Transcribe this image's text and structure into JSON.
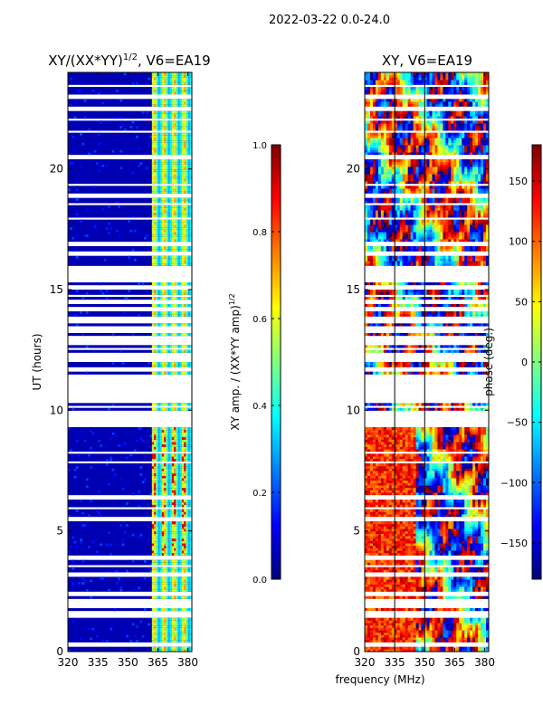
{
  "figure": {
    "suptitle": "2022-03-22 0.0-24.0",
    "shared_xlabel": "frequency (MHz)"
  },
  "colors": {
    "jet": [
      "#00007f",
      "#0000ff",
      "#007fff",
      "#00ffff",
      "#7fff7f",
      "#ffff00",
      "#ff7f00",
      "#ff0000",
      "#7f0000"
    ],
    "axis": "#000000",
    "gap": "#ffffff"
  },
  "chart_data": [
    {
      "type": "heatmap",
      "title_main": "XY/(XX*YY)",
      "title_sup": "1/2",
      "title_tail": ", V6=EA19",
      "xlabel": "",
      "ylabel": "UT (hours)",
      "xlim": [
        320,
        382
      ],
      "ylim": [
        0,
        24
      ],
      "xticks": [
        320,
        335,
        350,
        365,
        380
      ],
      "yticks": [
        0,
        5,
        10,
        15,
        20
      ],
      "colorbar": {
        "label_main": "XY amp. / (XX*YY amp)",
        "label_sup": "1/2",
        "range": [
          0.0,
          1.0
        ],
        "ticks": [
          0.0,
          0.2,
          0.4,
          0.6,
          0.8,
          1.0
        ],
        "tick_labels": [
          "0.0",
          "0.2",
          "0.4",
          "0.6",
          "0.8",
          "1.0"
        ]
      },
      "description_values": {
        "background_amp": 0.05,
        "bright_band_mhz": [
          362,
          382
        ],
        "bright_band_amp_range": [
          0.3,
          0.75
        ],
        "peak_amp": 0.9
      }
    },
    {
      "type": "heatmap",
      "title_main": "XY, V6=EA19",
      "xlabel": "frequency (MHz)",
      "ylabel": "",
      "xlim": [
        320,
        382
      ],
      "ylim": [
        0,
        24
      ],
      "xticks": [
        320,
        335,
        350,
        365,
        380
      ],
      "yticks": [
        0,
        5,
        10,
        15,
        20
      ],
      "colorbar": {
        "label_main": "phase (deg.)",
        "range": [
          -180,
          180
        ],
        "ticks": [
          -150,
          -100,
          -50,
          0,
          50,
          100,
          150
        ],
        "tick_labels": [
          "−150",
          "−100",
          "−50",
          "0",
          "50",
          "100",
          "150"
        ]
      }
    }
  ],
  "data_gaps_hours": [
    [
      0.2,
      0.42
    ],
    [
      1.45,
      1.7
    ],
    [
      1.85,
      2.15
    ],
    [
      2.3,
      2.45
    ],
    [
      3.15,
      3.25
    ],
    [
      3.55,
      3.6
    ],
    [
      3.85,
      3.95
    ],
    [
      5.45,
      5.6
    ],
    [
      5.9,
      6.0
    ],
    [
      6.35,
      6.45
    ],
    [
      7.8,
      7.9
    ],
    [
      8.25,
      8.3
    ],
    [
      9.35,
      10.0
    ],
    [
      10.15,
      10.2
    ],
    [
      10.35,
      11.5
    ],
    [
      11.62,
      11.78
    ],
    [
      12.0,
      12.35
    ],
    [
      12.5,
      12.6
    ],
    [
      12.75,
      13.05
    ],
    [
      13.2,
      13.5
    ],
    [
      13.6,
      13.95
    ],
    [
      14.1,
      14.3
    ],
    [
      14.45,
      14.55
    ],
    [
      14.7,
      14.85
    ],
    [
      15.05,
      15.15
    ],
    [
      15.3,
      15.95
    ],
    [
      16.45,
      16.6
    ],
    [
      16.8,
      17.0
    ],
    [
      17.55,
      17.62
    ],
    [
      17.9,
      17.98
    ],
    [
      18.5,
      18.62
    ],
    [
      18.85,
      18.95
    ],
    [
      19.3,
      19.38
    ],
    [
      20.4,
      20.55
    ],
    [
      21.5,
      21.6
    ],
    [
      22.0,
      22.15
    ],
    [
      22.45,
      22.55
    ],
    [
      22.9,
      23.05
    ],
    [
      23.4,
      23.5
    ]
  ]
}
